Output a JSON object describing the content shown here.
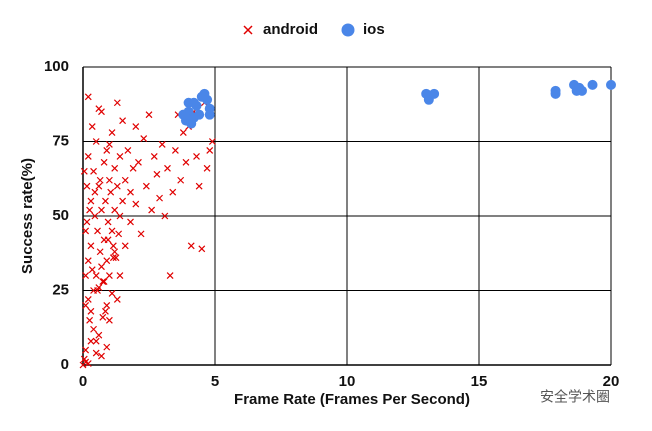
{
  "chart_data": {
    "type": "scatter",
    "x_label": "Frame Rate (Frames Per Second)",
    "y_label": "Success rate(%)",
    "legend": "top",
    "grid": true,
    "xlim": [
      0,
      20
    ],
    "xticks": [
      0,
      5,
      10,
      15,
      20
    ],
    "ylim": [
      0,
      100
    ],
    "yticks": [
      0,
      25,
      50,
      75,
      100
    ],
    "watermark": "安全学术圈",
    "series": [
      {
        "name": "android",
        "color": "#e00000",
        "marker": "x",
        "x": [
          0.05,
          0.1,
          0.1,
          0.15,
          0.2,
          0.2,
          0.25,
          0.3,
          0.3,
          0.35,
          0.4,
          0.4,
          0.45,
          0.5,
          0.5,
          0.55,
          0.6,
          0.6,
          0.65,
          0.7,
          0.7,
          0.75,
          0.8,
          0.8,
          0.85,
          0.9,
          0.9,
          0.95,
          1.0,
          1.0,
          1.05,
          1.1,
          1.1,
          1.15,
          1.2,
          1.2,
          1.25,
          1.3,
          1.3,
          1.35,
          1.4,
          1.4,
          1.5,
          1.5,
          1.6,
          1.6,
          1.7,
          1.8,
          1.8,
          1.9,
          2.0,
          2.0,
          2.1,
          2.2,
          2.3,
          2.4,
          2.5,
          2.6,
          2.7,
          2.8,
          2.9,
          3.0,
          3.1,
          3.2,
          3.3,
          3.4,
          3.5,
          3.6,
          3.7,
          3.8,
          3.9,
          4.0,
          4.1,
          4.2,
          4.3,
          4.4,
          4.5,
          4.6,
          4.7,
          4.8,
          4.9,
          0.1,
          0.2,
          0.3,
          0.4,
          0.5,
          0.6,
          0.7,
          0.8,
          0.9,
          1.0,
          1.1,
          1.2,
          1.3,
          1.4,
          0.15,
          0.35,
          0.55,
          0.75,
          0.95,
          1.15,
          0.05,
          0.25,
          0.45,
          0.65,
          0.85,
          0.1,
          0.3,
          0.5,
          0.7,
          0.9,
          0.2,
          0.6,
          1.0,
          0.0,
          0.1,
          0.2
        ],
        "values": [
          2,
          45,
          20,
          60,
          35,
          70,
          15,
          55,
          40,
          80,
          25,
          65,
          50,
          30,
          75,
          45,
          10,
          60,
          38,
          85,
          52,
          28,
          68,
          42,
          55,
          35,
          72,
          48,
          62,
          30,
          58,
          45,
          78,
          40,
          66,
          52,
          36,
          88,
          60,
          44,
          70,
          50,
          55,
          82,
          62,
          40,
          72,
          58,
          48,
          66,
          80,
          54,
          68,
          44,
          76,
          60,
          84,
          52,
          70,
          64,
          56,
          74,
          50,
          66,
          30,
          58,
          72,
          84,
          62,
          78,
          68,
          80,
          40,
          85,
          70,
          60,
          39,
          88,
          66,
          72,
          75,
          30,
          22,
          18,
          12,
          8,
          26,
          33,
          28,
          20,
          15,
          24,
          38,
          22,
          30,
          48,
          32,
          25,
          16,
          42,
          36,
          65,
          52,
          58,
          62,
          18,
          5,
          8,
          4,
          3,
          6,
          90,
          86,
          74,
          0,
          1,
          0.5
        ]
      },
      {
        "name": "ios",
        "color": "#4a86e8",
        "marker": "circle",
        "x": [
          3.8,
          3.9,
          4.0,
          4.0,
          4.1,
          4.2,
          4.3,
          4.4,
          4.5,
          4.6,
          4.7,
          4.8,
          4.8,
          3.9,
          4.1,
          4.2,
          13.0,
          13.1,
          13.3,
          17.9,
          17.9,
          18.6,
          18.7,
          18.8,
          18.9,
          19.3,
          20.0
        ],
        "values": [
          84,
          82,
          88,
          85,
          81,
          83,
          87,
          84,
          90,
          91,
          89,
          86,
          84,
          83,
          82,
          88,
          91,
          89,
          91,
          92,
          91,
          94,
          92,
          93,
          92,
          94,
          94
        ]
      }
    ]
  }
}
